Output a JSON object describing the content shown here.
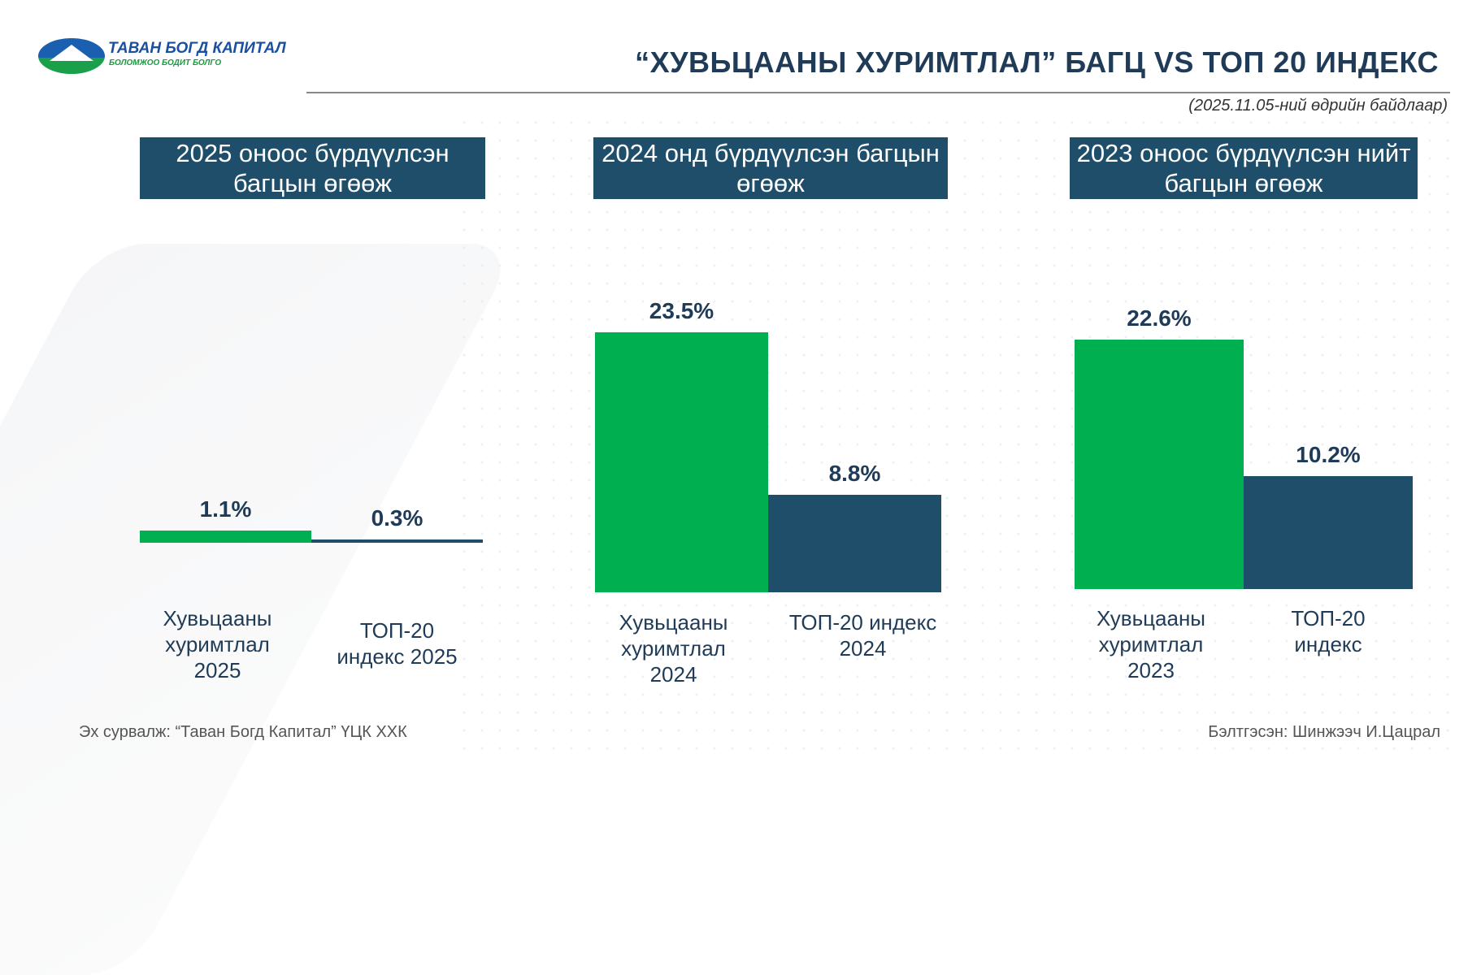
{
  "logo": {
    "name": "ТАВАН БОГД КАПИТАЛ",
    "tagline": "БОЛОМЖОО БОДИТ БОЛГО"
  },
  "title": "“ХУВЬЦААНЫ ХУРИМТЛАЛ” БАГЦ VS ТОП 20 ИНДЕКС",
  "date_note": "(2025.11.05-ний өдрийн байдлаар)",
  "colors": {
    "green": "#00b050",
    "navy": "#1f4e6b"
  },
  "chart_data": [
    {
      "type": "bar",
      "title": "2025 оноос бүрдүүлсэн багцын өгөөж",
      "categories": [
        "Хувьцааны хуримтлал 2025",
        "ТОП-20 индекс 2025"
      ],
      "values": [
        1.1,
        0.3
      ],
      "value_labels": [
        "1.1%",
        "0.3%"
      ],
      "unit": "%"
    },
    {
      "type": "bar",
      "title": "2024 онд бүрдүүлсэн багцын өгөөж",
      "categories": [
        "Хувьцааны хуримтлал 2024",
        "ТОП-20 индекс 2024"
      ],
      "values": [
        23.5,
        8.8
      ],
      "value_labels": [
        "23.5%",
        "8.8%"
      ],
      "unit": "%"
    },
    {
      "type": "bar",
      "title": "2023 оноос бүрдүүлсэн нийт багцын өгөөж",
      "categories": [
        "Хувьцааны хуримтлал 2023",
        "ТОП-20 индекс"
      ],
      "values": [
        22.6,
        10.2
      ],
      "value_labels": [
        "22.6%",
        "10.2%"
      ],
      "unit": "%"
    }
  ],
  "footer": {
    "source": "Эх сурвалж: “Таван Богд Капитал” ҮЦК ХХК",
    "prepared": "Бэлтгэсэн: Шинжээч И.Цацрал"
  }
}
